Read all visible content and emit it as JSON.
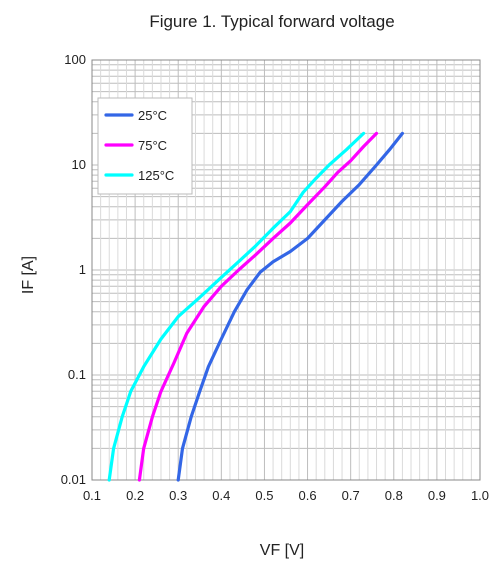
{
  "chart_data": {
    "type": "line",
    "title": "Figure 1. Typical forward voltage",
    "xlabel": "VF [V]",
    "ylabel": "IF [A]",
    "xlim": [
      0.1,
      1.0
    ],
    "ylim": [
      0.01,
      100
    ],
    "yscale": "log",
    "grid": true,
    "legend_position": "top-left",
    "x_ticks": [
      "0.1",
      "0.2",
      "0.3",
      "0.4",
      "0.5",
      "0.6",
      "0.7",
      "0.8",
      "0.9",
      "1.0"
    ],
    "y_ticks": [
      "0.01",
      "0.1",
      "1",
      "10",
      "100"
    ],
    "series": [
      {
        "name": "25°C",
        "color": "#3366e6",
        "x": [
          0.3,
          0.31,
          0.33,
          0.35,
          0.37,
          0.4,
          0.43,
          0.46,
          0.49,
          0.52,
          0.56,
          0.6,
          0.64,
          0.68,
          0.72,
          0.76,
          0.79,
          0.82
        ],
        "y": [
          0.01,
          0.02,
          0.04,
          0.07,
          0.12,
          0.22,
          0.4,
          0.65,
          0.95,
          1.2,
          1.5,
          2.0,
          3.0,
          4.5,
          6.5,
          10,
          14,
          20
        ]
      },
      {
        "name": "75°C",
        "color": "#ff00ff",
        "x": [
          0.21,
          0.22,
          0.24,
          0.26,
          0.29,
          0.32,
          0.36,
          0.4,
          0.44,
          0.48,
          0.52,
          0.56,
          0.6,
          0.64,
          0.67,
          0.7,
          0.73,
          0.76
        ],
        "y": [
          0.01,
          0.02,
          0.04,
          0.07,
          0.13,
          0.25,
          0.45,
          0.7,
          1.0,
          1.4,
          2.0,
          2.8,
          4.2,
          6.2,
          8.5,
          11,
          15,
          20
        ]
      },
      {
        "name": "125°C",
        "color": "#00ffff",
        "x": [
          0.14,
          0.15,
          0.17,
          0.19,
          0.22,
          0.26,
          0.3,
          0.35,
          0.4,
          0.44,
          0.48,
          0.52,
          0.56,
          0.59,
          0.62,
          0.65,
          0.69,
          0.73
        ],
        "y": [
          0.01,
          0.02,
          0.04,
          0.07,
          0.12,
          0.22,
          0.36,
          0.55,
          0.85,
          1.2,
          1.7,
          2.5,
          3.6,
          5.5,
          7.5,
          10,
          14,
          20
        ]
      }
    ]
  }
}
